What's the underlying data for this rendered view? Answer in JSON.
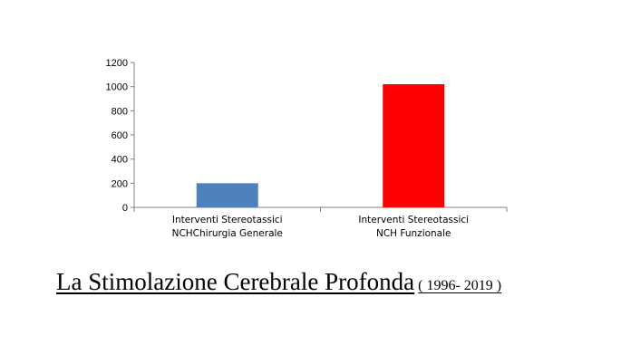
{
  "chart_data": {
    "type": "bar",
    "categories": [
      [
        "Interventi Stereotassici",
        "NCHChirurgia Generale"
      ],
      [
        "Interventi Stereotassici",
        "NCH Funzionale"
      ]
    ],
    "values": [
      200,
      1020
    ],
    "colors": [
      "#4f81bd",
      "#ff0000"
    ],
    "ylim": [
      0,
      1200
    ],
    "yticks": [
      0,
      200,
      400,
      600,
      800,
      1000,
      1200
    ],
    "grid": false,
    "legend": "none"
  },
  "caption": {
    "main": "La Stimolazione Cerebrale Profonda",
    "years": "( 1996- 2019 )"
  }
}
